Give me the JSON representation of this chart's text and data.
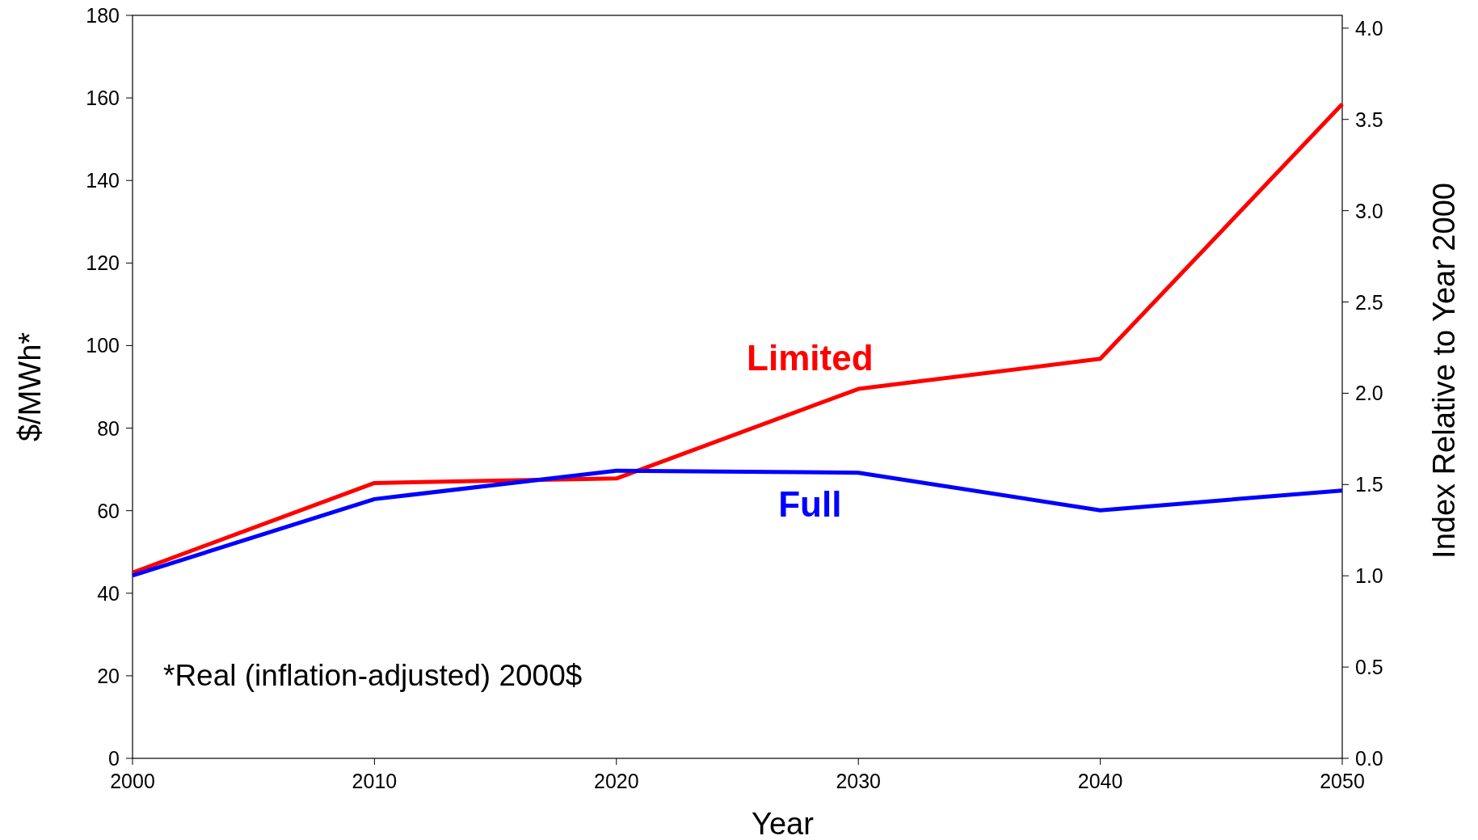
{
  "chart_data": {
    "type": "line",
    "xlabel": "Year",
    "ylabel": "$/MWh*",
    "y2label": "Index Relative to Year 2000",
    "x": [
      2000,
      2010,
      2020,
      2030,
      2040,
      2050
    ],
    "xlim": [
      2000,
      2050
    ],
    "xticks": [
      2000,
      2010,
      2020,
      2030,
      2040,
      2050
    ],
    "ylim": [
      0,
      180
    ],
    "yticks": [
      0,
      20,
      40,
      60,
      80,
      100,
      120,
      140,
      160,
      180
    ],
    "y2lim": [
      0,
      4.07
    ],
    "y2ticks": [
      {
        "value": 0,
        "label": "0.0"
      },
      {
        "value": 0.5,
        "label": "0.5"
      },
      {
        "value": 1,
        "label": "1.0"
      },
      {
        "value": 1.5,
        "label": "1.5"
      },
      {
        "value": 2,
        "label": "2.0"
      },
      {
        "value": 2.5,
        "label": "2.5"
      },
      {
        "value": 3,
        "label": "3.0"
      },
      {
        "value": 3.5,
        "label": "3.5"
      },
      {
        "value": 4,
        "label": "4.0"
      }
    ],
    "series": [
      {
        "name": "Limited",
        "color": "#ff0000",
        "values": [
          45,
          66.7,
          67.8,
          89.5,
          96.8,
          158.5
        ]
      },
      {
        "name": "Full",
        "color": "#0000ff",
        "values": [
          44.3,
          62.8,
          69.7,
          69.2,
          60.1,
          64.9
        ]
      }
    ],
    "annotations": [
      "*Real (inflation-adjusted) 2000$"
    ],
    "grid": false,
    "marker": "none",
    "line_style": "solid"
  }
}
